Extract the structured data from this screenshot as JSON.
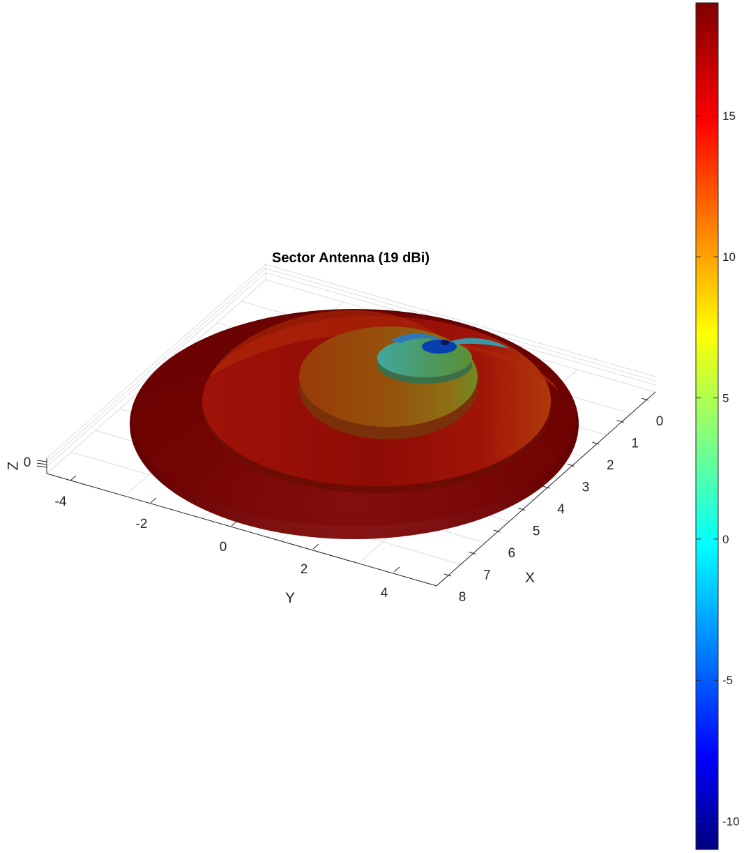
{
  "chart_data": {
    "type": "surface3d",
    "title": "Sector Antenna (19 dBi)",
    "xlabel": "X",
    "ylabel": "Y",
    "zlabel": "Z",
    "x_ticks": [
      "0",
      "1",
      "2",
      "3",
      "4",
      "5",
      "6",
      "7",
      "8"
    ],
    "y_ticks": [
      "-4",
      "-2",
      "0",
      "2",
      "4"
    ],
    "z_ticks": [
      "0"
    ],
    "colorbar": {
      "ticks": [
        "15",
        "10",
        "5",
        "0",
        "-5",
        "-10"
      ],
      "tick_values": [
        15,
        10,
        5,
        0,
        -5,
        -10
      ],
      "range": [
        -11,
        19
      ],
      "colormap": "jet"
    },
    "surface": {
      "description": "Stacked contour levels of sector antenna gain pattern",
      "max_gain_dbi": 19,
      "min_gain_dbi": -11,
      "levels": [
        {
          "gain_dbi": 19,
          "color": "#6a0000"
        },
        {
          "gain_dbi": 17,
          "color": "#8c0a04"
        },
        {
          "gain_dbi": 11,
          "color": "#9a4d0a"
        },
        {
          "gain_dbi": 4,
          "color": "#5d9c3a"
        },
        {
          "gain_dbi": -6,
          "color": "#0a3ca8"
        }
      ]
    }
  }
}
